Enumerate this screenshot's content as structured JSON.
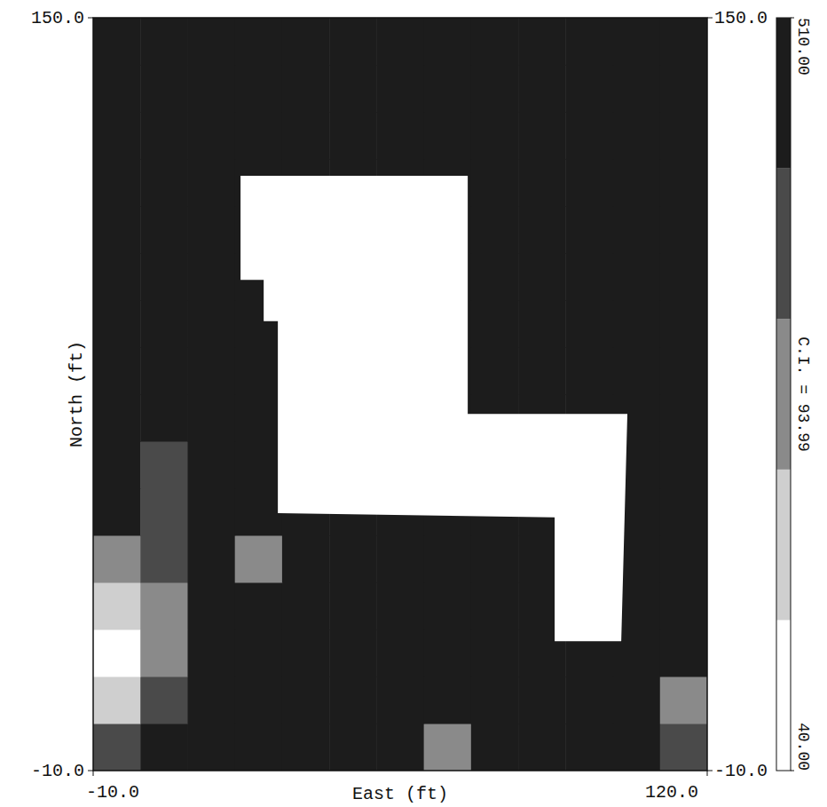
{
  "chart_data": {
    "type": "heatmap",
    "x_label": "East (ft)",
    "y_label": "North (ft)",
    "xlim": [
      -10,
      120
    ],
    "ylim": [
      -10,
      150
    ],
    "xticks": [
      {
        "value": -10,
        "label": "-10.0"
      },
      {
        "value": 120,
        "label": "120.0"
      }
    ],
    "yticks": [
      {
        "value": -10,
        "label": "-10.0"
      },
      {
        "value": 150,
        "label": "150.0"
      }
    ],
    "y2lim": [
      -10,
      150
    ],
    "y2ticks": [
      {
        "value": -10,
        "label": "-10.0"
      },
      {
        "value": 150,
        "label": "150.0"
      }
    ],
    "grid": false,
    "x_edges": [
      -10,
      0,
      10,
      20,
      30,
      40,
      50,
      60,
      70,
      80,
      90,
      100,
      110,
      120
    ],
    "y_edges": [
      -10,
      0,
      10,
      20,
      30,
      40,
      50,
      60,
      70,
      80,
      90,
      100,
      110,
      120,
      130,
      140,
      150
    ],
    "cells": [
      [
        350,
        480,
        490,
        495,
        500,
        490,
        480,
        300,
        490,
        495,
        480,
        470,
        380
      ],
      [
        150,
        380,
        480,
        490,
        495,
        500,
        490,
        495,
        500,
        490,
        480,
        490,
        300
      ],
      [
        120,
        300,
        450,
        490,
        495,
        500,
        495,
        490,
        495,
        500,
        490,
        470,
        490
      ],
      [
        200,
        250,
        420,
        480,
        490,
        495,
        500,
        495,
        490,
        495,
        490,
        480,
        490
      ],
      [
        300,
        380,
        440,
        300,
        490,
        495,
        495,
        490,
        495,
        500,
        480,
        490,
        495
      ],
      [
        420,
        350,
        470,
        480,
        490,
        500,
        495,
        490,
        500,
        495,
        490,
        495,
        490
      ],
      [
        460,
        400,
        450,
        470,
        380,
        495,
        500,
        495,
        490,
        500,
        495,
        490,
        480
      ],
      [
        480,
        430,
        460,
        470,
        490,
        495,
        500,
        500,
        495,
        490,
        495,
        500,
        490
      ],
      [
        490,
        470,
        480,
        485,
        490,
        500,
        505,
        500,
        495,
        500,
        490,
        495,
        470
      ],
      [
        495,
        490,
        480,
        490,
        495,
        500,
        505,
        500,
        500,
        495,
        490,
        480,
        490
      ],
      [
        495,
        495,
        490,
        495,
        500,
        505,
        505,
        500,
        500,
        495,
        495,
        460,
        495
      ],
      [
        500,
        495,
        495,
        495,
        500,
        505,
        505,
        505,
        500,
        500,
        495,
        490,
        495
      ],
      [
        500,
        500,
        495,
        500,
        500,
        505,
        480,
        505,
        505,
        500,
        500,
        495,
        500
      ],
      [
        505,
        500,
        500,
        500,
        505,
        505,
        505,
        505,
        505,
        500,
        500,
        500,
        500
      ],
      [
        490,
        500,
        505,
        500,
        470,
        505,
        505,
        505,
        505,
        500,
        505,
        500,
        505
      ],
      [
        480,
        470,
        500,
        505,
        505,
        505,
        505,
        430,
        505,
        505,
        505,
        505,
        500
      ]
    ],
    "blank_region": [
      [
        21.2,
        116.4
      ],
      [
        69.3,
        116.4
      ],
      [
        69.3,
        65.8
      ],
      [
        103.1,
        65.8
      ],
      [
        101.8,
        17.5
      ],
      [
        87.7,
        17.5
      ],
      [
        87.7,
        43.8
      ],
      [
        29.1,
        44.7
      ],
      [
        29.1,
        85.5
      ],
      [
        26.1,
        85.5
      ],
      [
        26.1,
        94.3
      ],
      [
        21.2,
        94.3
      ]
    ],
    "colorbar": {
      "range": [
        40,
        510
      ],
      "ticks": [
        {
          "value": 40,
          "label": "40.00"
        },
        {
          "value": 510,
          "label": "510.00"
        }
      ],
      "interval": 93.99,
      "label": "C.I. = 93.99"
    }
  }
}
